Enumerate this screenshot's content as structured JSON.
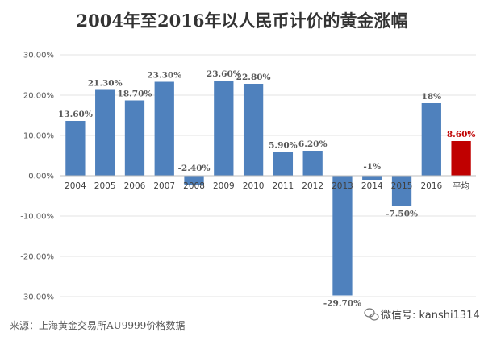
{
  "chart_data": {
    "type": "bar",
    "title": "2004年至2016年以人民币计价的黄金涨幅",
    "categories": [
      "2004",
      "2005",
      "2006",
      "2007",
      "2008",
      "2009",
      "2010",
      "2011",
      "2012",
      "2013",
      "2014",
      "2015",
      "2016",
      "平均"
    ],
    "values": [
      13.6,
      21.3,
      18.7,
      23.3,
      -2.4,
      23.6,
      22.8,
      5.9,
      6.2,
      -29.7,
      -1,
      -7.5,
      18,
      8.6
    ],
    "data_labels": [
      "13.60%",
      "21.30%",
      "18.70%",
      "23.30%",
      "-2.40%",
      "23.60%",
      "22.80%",
      "5.90%",
      "6.20%",
      "-29.70%",
      "-1%",
      "-7.50%",
      "18%",
      "8.60%"
    ],
    "yticks": [
      "30.00%",
      "20.00%",
      "10.00%",
      "0.00%",
      "-10.00%",
      "-20.00%",
      "-30.00%"
    ],
    "ylim": [
      -30,
      30
    ],
    "grid": true,
    "bar_color": "#4f81bd",
    "highlight_color": "#c00000",
    "highlight_category": "平均"
  },
  "footer": {
    "source": "来源：上海黄金交易所AU9999价格数据",
    "wechat": "微信号: kanshi1314"
  }
}
